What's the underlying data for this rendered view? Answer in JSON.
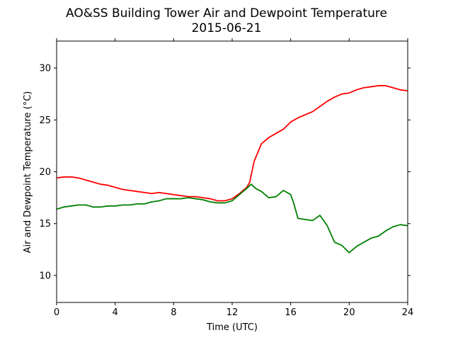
{
  "chart_data": {
    "type": "line",
    "title": "AO&SS Building Tower Air and Dewpoint Temperature",
    "subtitle": "2015-06-21",
    "xlabel": "Time (UTC)",
    "ylabel": "Air and Dewpoint Temperature (°C)",
    "xlim": [
      0,
      24
    ],
    "ylim": [
      7.4,
      32.6
    ],
    "xticks": [
      0,
      4,
      8,
      12,
      16,
      20,
      24
    ],
    "yticks": [
      10,
      15,
      20,
      25,
      30
    ],
    "grid": false,
    "series": [
      {
        "color": "#ff0000",
        "x": [
          0,
          0.5,
          1,
          1.5,
          2,
          2.5,
          3,
          3.5,
          4,
          4.5,
          5,
          5.5,
          6,
          6.5,
          7,
          7.5,
          8,
          8.5,
          9,
          9.5,
          10,
          10.5,
          11,
          11.5,
          12,
          12.5,
          13,
          13.2,
          13.5,
          14,
          14.5,
          15,
          15.5,
          16,
          16.5,
          17,
          17.5,
          18,
          18.5,
          19,
          19.5,
          20,
          20.5,
          21,
          21.5,
          22,
          22.5,
          23,
          23.5,
          24
        ],
        "values": [
          19.4,
          19.5,
          19.5,
          19.4,
          19.2,
          19.0,
          18.8,
          18.7,
          18.5,
          18.3,
          18.2,
          18.1,
          18.0,
          17.9,
          18.0,
          17.9,
          17.8,
          17.7,
          17.6,
          17.6,
          17.5,
          17.4,
          17.2,
          17.2,
          17.4,
          17.9,
          18.5,
          19.0,
          21.0,
          22.7,
          23.3,
          23.7,
          24.1,
          24.8,
          25.2,
          25.5,
          25.8,
          26.3,
          26.8,
          27.2,
          27.5,
          27.6,
          27.9,
          28.1,
          28.2,
          28.3,
          28.3,
          28.1,
          27.9,
          27.8
        ]
      },
      {
        "color": "#008000",
        "x": [
          0,
          0.5,
          1,
          1.5,
          2,
          2.5,
          3,
          3.5,
          4,
          4.5,
          5,
          5.5,
          6,
          6.5,
          7,
          7.5,
          8,
          8.5,
          9,
          9.5,
          10,
          10.5,
          11,
          11.5,
          12,
          12.5,
          13,
          13.3,
          13.6,
          14,
          14.5,
          15,
          15.5,
          16,
          16.2,
          16.5,
          17,
          17.5,
          18,
          18.5,
          19,
          19.5,
          20,
          20.5,
          21,
          21.5,
          22,
          22.5,
          23,
          23.5,
          24
        ],
        "values": [
          16.4,
          16.6,
          16.7,
          16.8,
          16.8,
          16.6,
          16.6,
          16.7,
          16.7,
          16.8,
          16.8,
          16.9,
          16.9,
          17.1,
          17.2,
          17.4,
          17.4,
          17.4,
          17.5,
          17.4,
          17.3,
          17.1,
          17.0,
          17.0,
          17.2,
          17.8,
          18.4,
          18.8,
          18.4,
          18.1,
          17.5,
          17.6,
          18.2,
          17.8,
          17.0,
          15.5,
          15.4,
          15.3,
          15.8,
          14.8,
          13.2,
          12.9,
          12.2,
          12.8,
          13.2,
          13.6,
          13.8,
          14.3,
          14.7,
          14.9,
          14.8
        ]
      }
    ]
  }
}
